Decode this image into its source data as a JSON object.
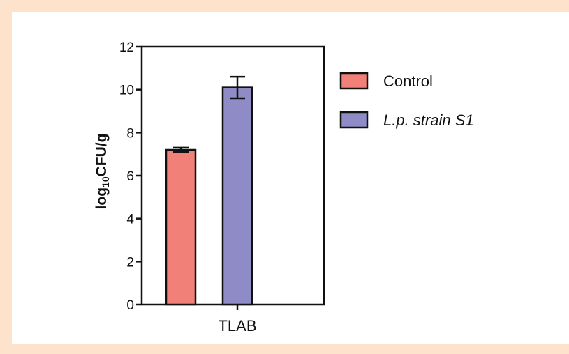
{
  "chart_data": {
    "type": "bar",
    "title": "",
    "xlabel": "",
    "ylabel": {
      "prefix": "log",
      "subscript": "10",
      "suffix": "CFU/g"
    },
    "ylim": [
      0,
      12
    ],
    "yticks": [
      0,
      2,
      4,
      6,
      8,
      10,
      12
    ],
    "categories": [
      "TLAB"
    ],
    "series": [
      {
        "name": "Control",
        "values": [
          7.2
        ],
        "error": [
          0.1
        ],
        "color": "#f08078",
        "italic": false
      },
      {
        "name": "L.p. strain S1",
        "values": [
          10.1
        ],
        "error": [
          0.5
        ],
        "color": "#8f8bc6",
        "italic": true
      }
    ],
    "legend_position": "right",
    "grid": false
  }
}
